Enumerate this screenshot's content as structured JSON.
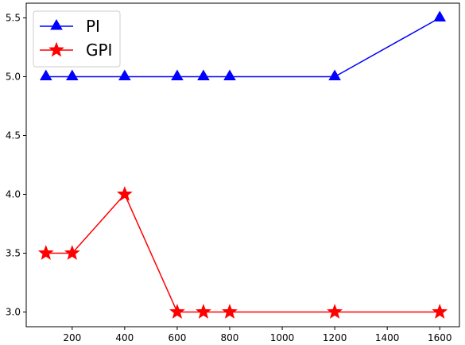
{
  "chart_data": {
    "type": "line",
    "x": [
      100,
      200,
      400,
      600,
      700,
      800,
      1200,
      1600
    ],
    "series": [
      {
        "name": "PI",
        "values": [
          5.0,
          5.0,
          5.0,
          5.0,
          5.0,
          5.0,
          5.0,
          5.5
        ],
        "color": "#0000ff",
        "marker": "triangle"
      },
      {
        "name": "GPI",
        "values": [
          3.5,
          3.5,
          4.0,
          3.0,
          3.0,
          3.0,
          3.0,
          3.0
        ],
        "color": "#ff0000",
        "marker": "star"
      }
    ],
    "xticks": [
      200,
      400,
      600,
      800,
      1000,
      1200,
      1400,
      1600
    ],
    "xtick_labels": [
      "200",
      "400",
      "600",
      "800",
      "1000",
      "1200",
      "1400",
      "1600"
    ],
    "yticks": [
      3.0,
      3.5,
      4.0,
      4.5,
      5.0,
      5.5
    ],
    "ytick_labels": [
      "3.0",
      "3.5",
      "4.0",
      "4.5",
      "5.0",
      "5.5"
    ],
    "xlim": [
      25,
      1675
    ],
    "ylim": [
      2.875,
      5.625
    ],
    "title": "",
    "xlabel": "",
    "ylabel": "",
    "grid": false,
    "legend_position": "top-left"
  }
}
